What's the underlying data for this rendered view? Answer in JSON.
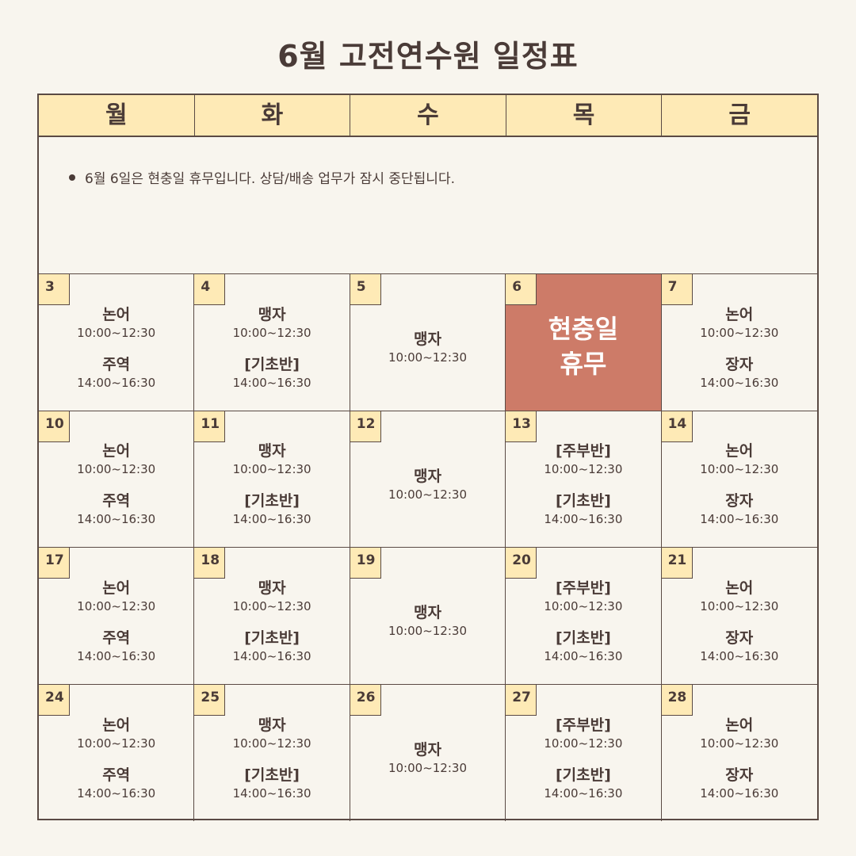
{
  "title": "6월 고전연수원 일정표",
  "weekdays": [
    "월",
    "화",
    "수",
    "목",
    "금"
  ],
  "notice": "6월 6일은 현충일 휴무입니다. 상담/배송 업무가 잠시 중단됩니다.",
  "colors": {
    "background": "#f8f5ee",
    "header": "#feeab6",
    "holiday": "#cd7b68",
    "text": "#4a3b37"
  },
  "days": [
    {
      "date": "3",
      "classes": [
        {
          "name": "논어",
          "time": "10:00~12:30"
        },
        {
          "name": "주역",
          "time": "14:00~16:30"
        }
      ]
    },
    {
      "date": "4",
      "classes": [
        {
          "name": "맹자",
          "time": "10:00~12:30"
        },
        {
          "name": "[기초반]",
          "time": "14:00~16:30"
        }
      ]
    },
    {
      "date": "5",
      "classes": [
        {
          "name": "맹자",
          "time": "10:00~12:30"
        }
      ]
    },
    {
      "date": "6",
      "holiday": [
        "현충일",
        "휴무"
      ]
    },
    {
      "date": "7",
      "classes": [
        {
          "name": "논어",
          "time": "10:00~12:30"
        },
        {
          "name": "장자",
          "time": "14:00~16:30"
        }
      ]
    },
    {
      "date": "10",
      "classes": [
        {
          "name": "논어",
          "time": "10:00~12:30"
        },
        {
          "name": "주역",
          "time": "14:00~16:30"
        }
      ]
    },
    {
      "date": "11",
      "classes": [
        {
          "name": "맹자",
          "time": "10:00~12:30"
        },
        {
          "name": "[기초반]",
          "time": "14:00~16:30"
        }
      ]
    },
    {
      "date": "12",
      "classes": [
        {
          "name": "맹자",
          "time": "10:00~12:30"
        }
      ]
    },
    {
      "date": "13",
      "classes": [
        {
          "name": "[주부반]",
          "time": "10:00~12:30"
        },
        {
          "name": "[기초반]",
          "time": "14:00~16:30"
        }
      ]
    },
    {
      "date": "14",
      "classes": [
        {
          "name": "논어",
          "time": "10:00~12:30"
        },
        {
          "name": "장자",
          "time": "14:00~16:30"
        }
      ]
    },
    {
      "date": "17",
      "classes": [
        {
          "name": "논어",
          "time": "10:00~12:30"
        },
        {
          "name": "주역",
          "time": "14:00~16:30"
        }
      ]
    },
    {
      "date": "18",
      "classes": [
        {
          "name": "맹자",
          "time": "10:00~12:30"
        },
        {
          "name": "[기초반]",
          "time": "14:00~16:30"
        }
      ]
    },
    {
      "date": "19",
      "classes": [
        {
          "name": "맹자",
          "time": "10:00~12:30"
        }
      ]
    },
    {
      "date": "20",
      "classes": [
        {
          "name": "[주부반]",
          "time": "10:00~12:30"
        },
        {
          "name": "[기초반]",
          "time": "14:00~16:30"
        }
      ]
    },
    {
      "date": "21",
      "classes": [
        {
          "name": "논어",
          "time": "10:00~12:30"
        },
        {
          "name": "장자",
          "time": "14:00~16:30"
        }
      ]
    },
    {
      "date": "24",
      "classes": [
        {
          "name": "논어",
          "time": "10:00~12:30"
        },
        {
          "name": "주역",
          "time": "14:00~16:30"
        }
      ]
    },
    {
      "date": "25",
      "classes": [
        {
          "name": "맹자",
          "time": "10:00~12:30"
        },
        {
          "name": "[기초반]",
          "time": "14:00~16:30"
        }
      ]
    },
    {
      "date": "26",
      "classes": [
        {
          "name": "맹자",
          "time": "10:00~12:30"
        }
      ]
    },
    {
      "date": "27",
      "classes": [
        {
          "name": "[주부반]",
          "time": "10:00~12:30"
        },
        {
          "name": "[기초반]",
          "time": "14:00~16:30"
        }
      ]
    },
    {
      "date": "28",
      "classes": [
        {
          "name": "논어",
          "time": "10:00~12:30"
        },
        {
          "name": "장자",
          "time": "14:00~16:30"
        }
      ]
    }
  ]
}
